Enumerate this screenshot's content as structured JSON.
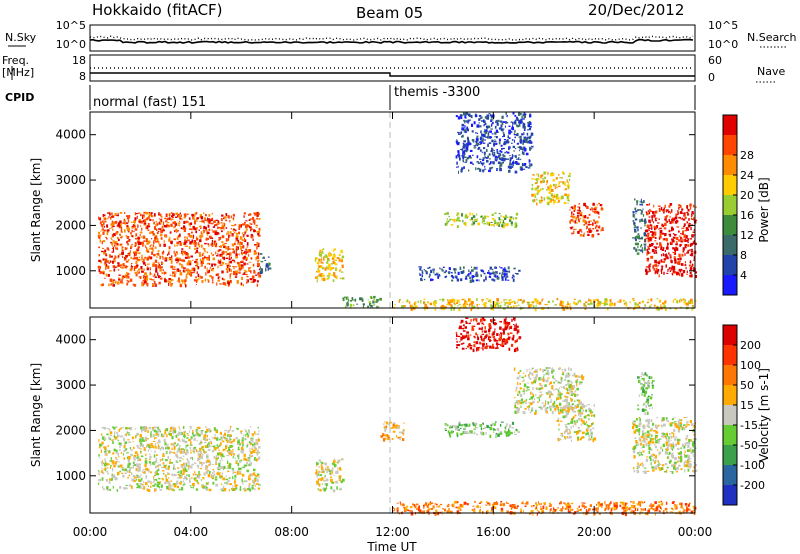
{
  "header": {
    "title": "Hokkaido (fitACF)",
    "beam": "Beam 05",
    "date": "20/Dec/2012"
  },
  "top_panels": {
    "nsky_label": "N.Sky",
    "nsearch_label": "N.Search",
    "noise_ticks": [
      "10^5",
      "10^0"
    ],
    "freq_label_1": "Freq.",
    "freq_label_2": "[MHz]",
    "freq_ticks": [
      "18",
      "8"
    ],
    "nave_label": "Nave",
    "nave_ticks": [
      "60",
      "0"
    ],
    "cpid_label": "CPID",
    "cpid_left": "normal (fast) 151",
    "cpid_right": "themis -3300"
  },
  "x_axis": {
    "label": "Time UT",
    "ticks": [
      "00:00",
      "04:00",
      "08:00",
      "12:00",
      "16:00",
      "20:00",
      "00:00"
    ]
  },
  "colors": {
    "power_scale": [
      "#1a1aff",
      "#2244aa",
      "#3a6a6a",
      "#3c8c3c",
      "#9acd32",
      "#ffcc00",
      "#ff8c00",
      "#ff4500",
      "#e00000"
    ],
    "velocity_scale": [
      "#2030c0",
      "#2a66a0",
      "#3aa04a",
      "#66cc33",
      "#c8c8c0",
      "#ffaa00",
      "#ff7700",
      "#ff3300",
      "#dd0000"
    ]
  },
  "chart_data": [
    {
      "type": "heatmap",
      "panel": "power",
      "ylabel": "Slant Range [km]",
      "yticks": [
        "1000",
        "2000",
        "3000",
        "4000"
      ],
      "colorbar_label": "Power [dB]",
      "colorbar_ticks": [
        "4",
        "8",
        "12",
        "16",
        "20",
        "24",
        "28"
      ],
      "xlim": [
        0,
        24
      ],
      "ylim": [
        180,
        4500
      ],
      "blobs": [
        {
          "x0": 0.3,
          "x1": 6.7,
          "y0": 700,
          "y1": 2300,
          "level": 7
        },
        {
          "x0": 6.7,
          "x1": 7.1,
          "y0": 1000,
          "y1": 1400,
          "level": 2
        },
        {
          "x0": 8.9,
          "x1": 10.0,
          "y0": 800,
          "y1": 1500,
          "level": 5
        },
        {
          "x0": 10.0,
          "x1": 11.5,
          "y0": 220,
          "y1": 450,
          "level": 3
        },
        {
          "x0": 12.0,
          "x1": 24.0,
          "y0": 180,
          "y1": 400,
          "level": 5
        },
        {
          "x0": 13.0,
          "x1": 17.0,
          "y0": 800,
          "y1": 1100,
          "level": 1
        },
        {
          "x0": 14.0,
          "x1": 17.0,
          "y0": 2000,
          "y1": 2300,
          "level": 4
        },
        {
          "x0": 17.5,
          "x1": 19.0,
          "y0": 2500,
          "y1": 3200,
          "level": 5
        },
        {
          "x0": 19.0,
          "x1": 20.3,
          "y0": 1800,
          "y1": 2500,
          "level": 7
        },
        {
          "x0": 14.5,
          "x1": 17.5,
          "y0": 3200,
          "y1": 4500,
          "level": 1
        },
        {
          "x0": 22.0,
          "x1": 24.0,
          "y0": 900,
          "y1": 2500,
          "level": 8
        },
        {
          "x0": 21.5,
          "x1": 22.0,
          "y0": 1400,
          "y1": 2600,
          "level": 2
        }
      ]
    },
    {
      "type": "heatmap",
      "panel": "velocity",
      "ylabel": "Slant Range [km]",
      "yticks": [
        "1000",
        "2000",
        "3000",
        "4000"
      ],
      "colorbar_label": "Velocity [m s-1]",
      "colorbar_ticks": [
        "200",
        "100",
        "50",
        "15",
        "-15",
        "-50",
        "-100",
        "-200"
      ],
      "xlim": [
        0,
        24
      ],
      "ylim": [
        180,
        4500
      ],
      "blobs": [
        {
          "x0": 0.3,
          "x1": 6.7,
          "y0": 700,
          "y1": 2100,
          "level": 4
        },
        {
          "x0": 8.9,
          "x1": 10.0,
          "y0": 700,
          "y1": 1400,
          "level": 4
        },
        {
          "x0": 11.5,
          "x1": 12.5,
          "y0": 1800,
          "y1": 2200,
          "level": 5
        },
        {
          "x0": 12.0,
          "x1": 24.0,
          "y0": 180,
          "y1": 450,
          "level": 6
        },
        {
          "x0": 14.0,
          "x1": 17.0,
          "y0": 1900,
          "y1": 2200,
          "level": 3
        },
        {
          "x0": 16.8,
          "x1": 19.5,
          "y0": 2400,
          "y1": 3400,
          "level": 4
        },
        {
          "x0": 18.5,
          "x1": 20.0,
          "y0": 1800,
          "y1": 2600,
          "level": 4
        },
        {
          "x0": 14.5,
          "x1": 17.0,
          "y0": 3800,
          "y1": 4500,
          "level": 8
        },
        {
          "x0": 21.5,
          "x1": 24.0,
          "y0": 1100,
          "y1": 2300,
          "level": 4
        },
        {
          "x0": 21.7,
          "x1": 22.3,
          "y0": 2400,
          "y1": 3300,
          "level": 3
        }
      ]
    }
  ]
}
